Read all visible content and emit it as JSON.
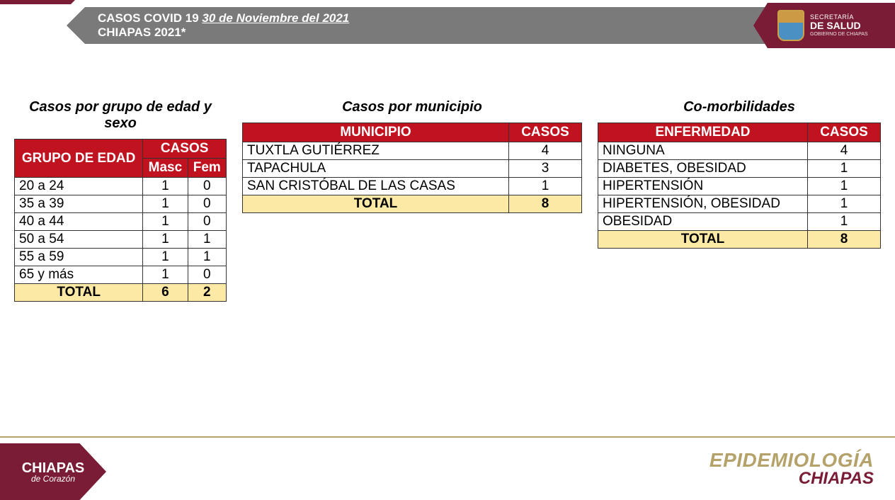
{
  "header": {
    "title_prefix": "CASOS COVID 19 ",
    "date": "30 de Noviembre del 2021",
    "subtitle": "CHIAPAS 2021*"
  },
  "logo": {
    "line1": "SECRETARÍA",
    "line2": "DE SALUD",
    "line3": "GOBIERNO DE CHIAPAS"
  },
  "colors": {
    "header_red": "#c1121f",
    "total_bg": "#fde9a6",
    "brand_maroon": "#7a1c35",
    "brand_gold": "#b5a26a",
    "header_grey": "#7a7a7a"
  },
  "age_sex": {
    "title": "Casos por grupo de edad y sexo",
    "columns": {
      "group": "GRUPO DE EDAD",
      "cases": "CASOS",
      "masc": "Masc",
      "fem": "Fem"
    },
    "rows": [
      {
        "group": "20 a 24",
        "masc": 1,
        "fem": 0
      },
      {
        "group": "35 a 39",
        "masc": 1,
        "fem": 0
      },
      {
        "group": "40 a 44",
        "masc": 1,
        "fem": 0
      },
      {
        "group": "50 a 54",
        "masc": 1,
        "fem": 1
      },
      {
        "group": "55 a 59",
        "masc": 1,
        "fem": 1
      },
      {
        "group": "65 y más",
        "masc": 1,
        "fem": 0
      }
    ],
    "total": {
      "label": "TOTAL",
      "masc": 6,
      "fem": 2
    }
  },
  "municipio": {
    "title": "Casos por municipio",
    "columns": {
      "muni": "MUNICIPIO",
      "cases": "CASOS"
    },
    "rows": [
      {
        "muni": "TUXTLA GUTIÉRREZ",
        "cases": 4
      },
      {
        "muni": "TAPACHULA",
        "cases": 3
      },
      {
        "muni": "SAN CRISTÓBAL DE LAS CASAS",
        "cases": 1
      }
    ],
    "total": {
      "label": "TOTAL",
      "cases": 8
    }
  },
  "comorb": {
    "title": "Co-morbilidades",
    "columns": {
      "disease": "ENFERMEDAD",
      "cases": "CASOS"
    },
    "rows": [
      {
        "disease": "NINGUNA",
        "cases": 4
      },
      {
        "disease": "DIABETES, OBESIDAD",
        "cases": 1
      },
      {
        "disease": "HIPERTENSIÓN",
        "cases": 1
      },
      {
        "disease": "HIPERTENSIÓN, OBESIDAD",
        "cases": 1
      },
      {
        "disease": "OBESIDAD",
        "cases": 1
      }
    ],
    "total": {
      "label": "TOTAL",
      "cases": 8
    }
  },
  "footer": {
    "corazon_line1": "CHIAPAS",
    "corazon_line2": "de Corazón",
    "epi_line1": "EPIDEMIOLOGÍA",
    "epi_line2": "CHIAPAS"
  }
}
